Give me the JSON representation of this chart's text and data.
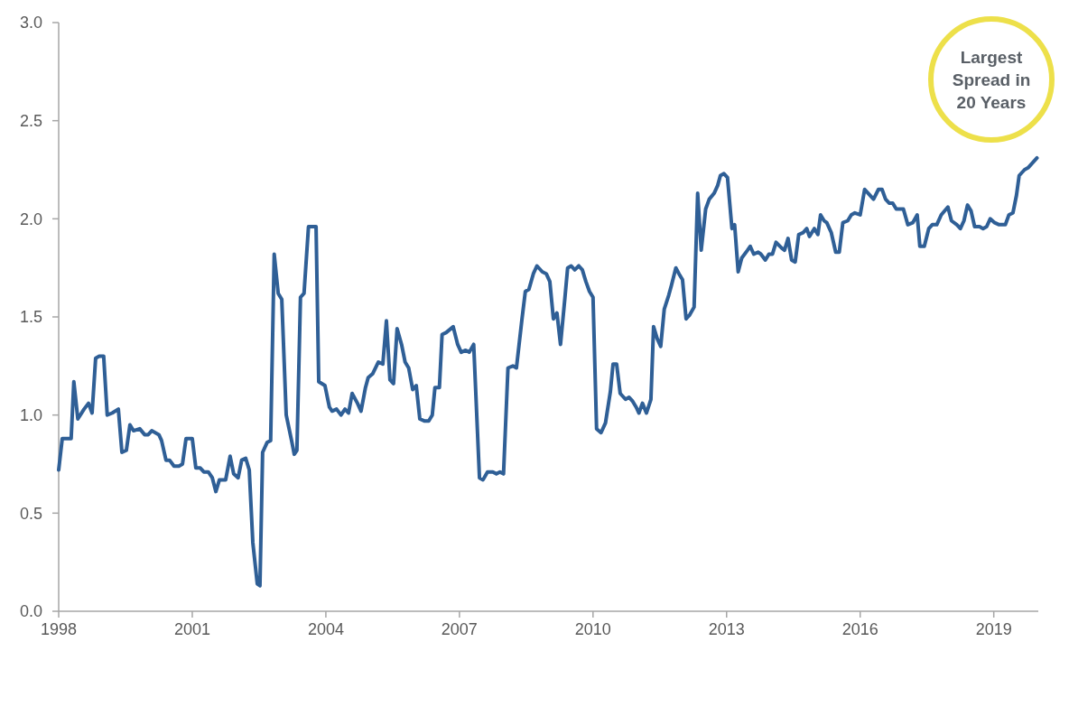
{
  "chart_data": {
    "type": "line",
    "xlim": [
      1998,
      2020
    ],
    "xticks": [
      1998,
      2001,
      2004,
      2007,
      2010,
      2013,
      2016,
      2019
    ],
    "ylim": [
      0,
      3
    ],
    "yticks": [
      {
        "value": 0,
        "label": "0.0"
      },
      0.5,
      {
        "value": 1,
        "label": "1.0"
      },
      1.5,
      {
        "value": 2,
        "label": "2.0"
      },
      2.5,
      {
        "value": 3,
        "label": "3.0"
      }
    ],
    "grid": false,
    "marker": "none",
    "line_style": "solid",
    "annotations": [
      "Largest Spread in 20 Years"
    ],
    "series": [
      {
        "color": "#2f5f96",
        "x": [
          1998.0,
          1998.08,
          1998.22,
          1998.28,
          1998.34,
          1998.43,
          1998.57,
          1998.67,
          1998.75,
          1998.83,
          1998.91,
          1999.01,
          1999.09,
          1999.2,
          1999.34,
          1999.42,
          1999.52,
          1999.6,
          1999.68,
          1999.82,
          1999.93,
          2000.01,
          2000.09,
          2000.25,
          2000.31,
          2000.41,
          2000.49,
          2000.59,
          2000.7,
          2000.78,
          2000.86,
          2001.0,
          2001.08,
          2001.18,
          2001.26,
          2001.36,
          2001.45,
          2001.53,
          2001.61,
          2001.75,
          2001.85,
          2001.93,
          2002.03,
          2002.11,
          2002.2,
          2002.28,
          2002.36,
          2002.46,
          2002.52,
          2002.58,
          2002.68,
          2002.76,
          2002.84,
          2002.93,
          2003.01,
          2003.11,
          2003.23,
          2003.29,
          2003.35,
          2003.43,
          2003.51,
          2003.61,
          2003.78,
          2003.84,
          2003.98,
          2004.08,
          2004.14,
          2004.24,
          2004.34,
          2004.43,
          2004.51,
          2004.59,
          2004.71,
          2004.79,
          2004.89,
          2004.95,
          2005.05,
          2005.18,
          2005.28,
          2005.36,
          2005.44,
          2005.52,
          2005.6,
          2005.7,
          2005.78,
          2005.86,
          2005.95,
          2006.03,
          2006.11,
          2006.21,
          2006.31,
          2006.39,
          2006.45,
          2006.55,
          2006.61,
          2006.7,
          2006.86,
          2006.96,
          2007.04,
          2007.14,
          2007.22,
          2007.32,
          2007.45,
          2007.53,
          2007.63,
          2007.75,
          2007.83,
          2007.91,
          2007.99,
          2008.09,
          2008.2,
          2008.28,
          2008.4,
          2008.48,
          2008.56,
          2008.66,
          2008.74,
          2008.86,
          2008.95,
          2009.03,
          2009.11,
          2009.19,
          2009.27,
          2009.37,
          2009.43,
          2009.51,
          2009.59,
          2009.68,
          2009.76,
          2009.84,
          2009.92,
          2010.0,
          2010.08,
          2010.18,
          2010.28,
          2010.39,
          2010.45,
          2010.53,
          2010.61,
          2010.73,
          2010.81,
          2010.89,
          2010.97,
          2011.03,
          2011.11,
          2011.2,
          2011.3,
          2011.36,
          2011.44,
          2011.52,
          2011.6,
          2011.7,
          2011.76,
          2011.86,
          2011.93,
          2012.01,
          2012.09,
          2012.17,
          2012.27,
          2012.35,
          2012.43,
          2012.53,
          2012.61,
          2012.72,
          2012.8,
          2012.86,
          2012.94,
          2013.02,
          2013.12,
          2013.18,
          2013.26,
          2013.34,
          2013.47,
          2013.53,
          2013.61,
          2013.71,
          2013.77,
          2013.87,
          2013.95,
          2014.03,
          2014.11,
          2014.24,
          2014.3,
          2014.38,
          2014.46,
          2014.54,
          2014.62,
          2014.72,
          2014.8,
          2014.86,
          2014.97,
          2015.05,
          2015.11,
          2015.19,
          2015.25,
          2015.35,
          2015.45,
          2015.53,
          2015.61,
          2015.72,
          2015.8,
          2015.88,
          2016.0,
          2016.1,
          2016.18,
          2016.3,
          2016.41,
          2016.49,
          2016.57,
          2016.65,
          2016.73,
          2016.81,
          2016.97,
          2017.07,
          2017.18,
          2017.28,
          2017.34,
          2017.44,
          2017.54,
          2017.62,
          2017.72,
          2017.82,
          2017.97,
          2018.05,
          2018.17,
          2018.25,
          2018.33,
          2018.41,
          2018.49,
          2018.57,
          2018.68,
          2018.76,
          2018.84,
          2018.92,
          2019.02,
          2019.12,
          2019.26,
          2019.34,
          2019.43,
          2019.51,
          2019.57,
          2019.69,
          2019.77,
          2019.97
        ],
        "values": [
          0.72,
          0.88,
          0.88,
          0.88,
          1.17,
          0.98,
          1.03,
          1.06,
          1.01,
          1.29,
          1.3,
          1.3,
          1.0,
          1.01,
          1.03,
          0.81,
          0.82,
          0.95,
          0.92,
          0.93,
          0.9,
          0.9,
          0.92,
          0.9,
          0.87,
          0.77,
          0.77,
          0.74,
          0.74,
          0.75,
          0.88,
          0.88,
          0.73,
          0.73,
          0.71,
          0.71,
          0.68,
          0.61,
          0.67,
          0.67,
          0.79,
          0.7,
          0.68,
          0.77,
          0.78,
          0.72,
          0.35,
          0.14,
          0.13,
          0.81,
          0.86,
          0.87,
          1.82,
          1.62,
          1.59,
          1.0,
          0.87,
          0.8,
          0.82,
          1.6,
          1.62,
          1.96,
          1.96,
          1.17,
          1.15,
          1.04,
          1.02,
          1.03,
          1.0,
          1.03,
          1.01,
          1.11,
          1.06,
          1.02,
          1.14,
          1.19,
          1.21,
          1.27,
          1.26,
          1.48,
          1.18,
          1.16,
          1.44,
          1.36,
          1.27,
          1.24,
          1.13,
          1.15,
          0.98,
          0.97,
          0.97,
          1.0,
          1.14,
          1.14,
          1.41,
          1.42,
          1.45,
          1.36,
          1.32,
          1.33,
          1.32,
          1.36,
          0.68,
          0.67,
          0.71,
          0.71,
          0.7,
          0.71,
          0.7,
          1.24,
          1.25,
          1.24,
          1.48,
          1.63,
          1.64,
          1.72,
          1.76,
          1.73,
          1.72,
          1.68,
          1.49,
          1.52,
          1.36,
          1.6,
          1.75,
          1.76,
          1.74,
          1.76,
          1.74,
          1.68,
          1.63,
          1.6,
          0.93,
          0.91,
          0.96,
          1.12,
          1.26,
          1.26,
          1.11,
          1.08,
          1.09,
          1.07,
          1.04,
          1.01,
          1.06,
          1.01,
          1.08,
          1.45,
          1.39,
          1.35,
          1.54,
          1.61,
          1.66,
          1.75,
          1.72,
          1.69,
          1.49,
          1.51,
          1.55,
          2.13,
          1.84,
          2.05,
          2.1,
          2.13,
          2.17,
          2.22,
          2.23,
          2.21,
          1.95,
          1.97,
          1.73,
          1.8,
          1.84,
          1.86,
          1.82,
          1.83,
          1.82,
          1.79,
          1.82,
          1.82,
          1.88,
          1.85,
          1.84,
          1.9,
          1.79,
          1.78,
          1.92,
          1.93,
          1.95,
          1.91,
          1.95,
          1.92,
          2.02,
          1.99,
          1.98,
          1.93,
          1.83,
          1.83,
          1.98,
          1.99,
          2.02,
          2.03,
          2.02,
          2.15,
          2.13,
          2.1,
          2.15,
          2.15,
          2.1,
          2.08,
          2.08,
          2.05,
          2.05,
          1.97,
          1.98,
          2.02,
          1.86,
          1.86,
          1.95,
          1.97,
          1.97,
          2.02,
          2.06,
          1.99,
          1.97,
          1.95,
          1.99,
          2.07,
          2.04,
          1.96,
          1.96,
          1.95,
          1.96,
          2.0,
          1.98,
          1.97,
          1.97,
          2.02,
          2.03,
          2.12,
          2.22,
          2.25,
          2.26,
          2.31
        ]
      }
    ]
  }
}
